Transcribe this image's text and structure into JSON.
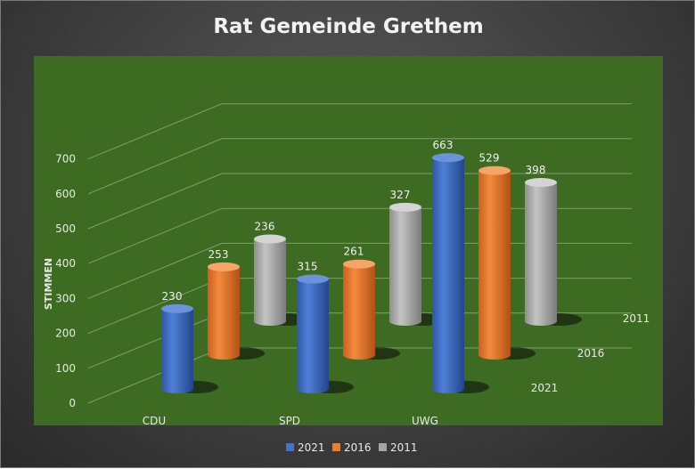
{
  "chart_data": {
    "type": "bar",
    "style": "3d-cylinder",
    "title": "Rat Gemeinde Grethem",
    "ylabel": "STIMMEN",
    "xlabel": "",
    "categories": [
      "CDU",
      "SPD",
      "UWG"
    ],
    "depth_categories": [
      "2021",
      "2016",
      "2011"
    ],
    "series": [
      {
        "name": "2021",
        "values": [
          230,
          315,
          663
        ],
        "color": "#4472c4"
      },
      {
        "name": "2016",
        "values": [
          253,
          261,
          529
        ],
        "color": "#ed7d31"
      },
      {
        "name": "2011",
        "values": [
          236,
          327,
          398
        ],
        "color": "#a5a5a5"
      }
    ],
    "ylim": [
      0,
      700
    ],
    "yticks": [
      0,
      100,
      200,
      300,
      400,
      500,
      600,
      700
    ],
    "grid": true,
    "legend_position": "bottom",
    "plot_background": "#3d6b22"
  }
}
